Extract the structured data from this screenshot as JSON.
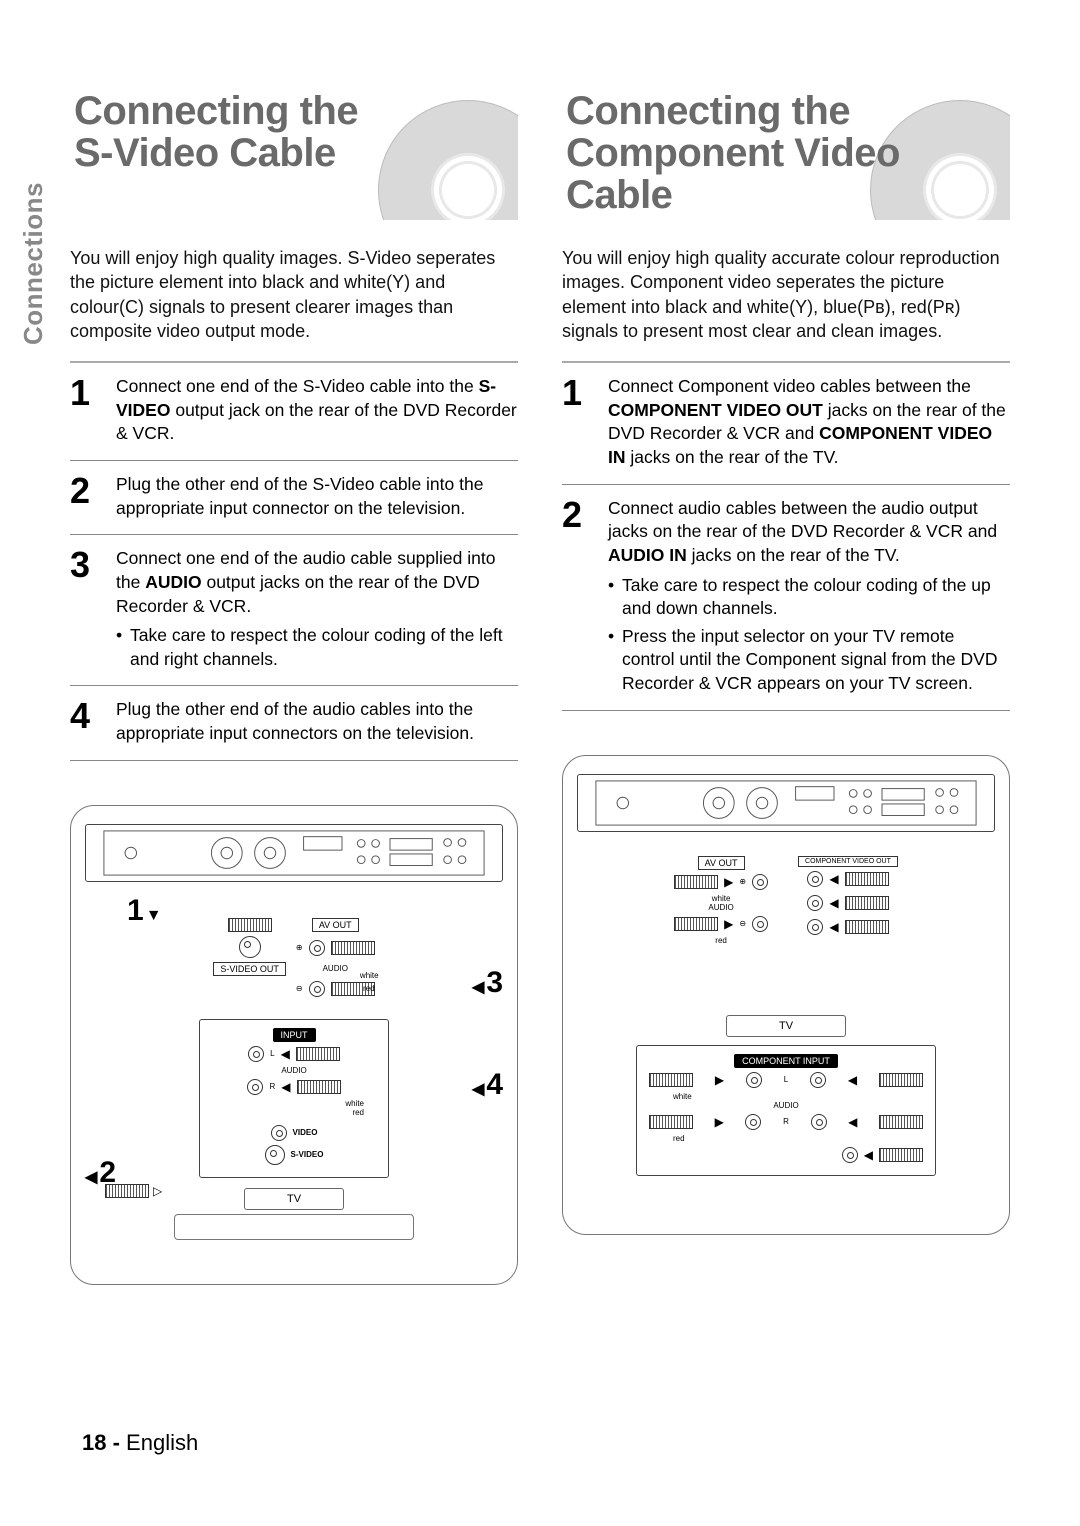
{
  "sideTab": "Connections",
  "footer": {
    "pageNumber": "18 -",
    "lang": "English"
  },
  "colors": {
    "titleText": "#6a6a6a",
    "sideTabText": "#888888",
    "ruleGray": "#888888",
    "bodyText": "#111111"
  },
  "typography": {
    "title_fontsize_pt": 30,
    "body_fontsize_pt": 13,
    "stepnum_fontsize_pt": 27
  },
  "left": {
    "title_line1": "Connecting the",
    "title_line2": "S-Video Cable",
    "intro": "You will enjoy high quality images. S-Video seperates the picture element into black and white(Y) and colour(C) signals to present clearer images than composite video output mode.",
    "steps": [
      {
        "num": "1",
        "segments": [
          {
            "text": "Connect one end of the S-Video cable into the ",
            "bold": false
          },
          {
            "text": "S-VIDEO",
            "bold": true
          },
          {
            "text": " output jack on the rear of the DVD Recorder & VCR.",
            "bold": false
          }
        ],
        "bullets": []
      },
      {
        "num": "2",
        "segments": [
          {
            "text": "Plug the other end of the S-Video cable into the appropriate input connector on the television.",
            "bold": false
          }
        ],
        "bullets": []
      },
      {
        "num": "3",
        "segments": [
          {
            "text": "Connect one end of the audio cable supplied into the ",
            "bold": false
          },
          {
            "text": "AUDIO",
            "bold": true
          },
          {
            "text": " output jacks on the rear of the DVD Recorder & VCR.",
            "bold": false
          }
        ],
        "bullets": [
          "Take care to respect the colour coding of the left and right channels."
        ]
      },
      {
        "num": "4",
        "segments": [
          {
            "text": "Plug the other end of the audio cables into the appropriate input connectors on the television.",
            "bold": false
          }
        ],
        "bullets": []
      }
    ],
    "diagram": {
      "numbers": [
        "1",
        "2",
        "3",
        "4"
      ],
      "labels": {
        "avout": "AV OUT",
        "svideoout": "S-VIDEO OUT",
        "audio": "AUDIO",
        "white": "white",
        "red": "red",
        "input": "INPUT",
        "L": "L",
        "R": "R",
        "video": "VIDEO",
        "svideo": "S-VIDEO",
        "tv": "TV"
      }
    }
  },
  "right": {
    "title_line1": "Connecting the",
    "title_line2": "Component Video Cable",
    "intro": "You will enjoy high quality accurate colour reproduction images. Component video seperates the picture element into black and white(Y), blue(Pʙ), red(Pʀ) signals to present most clear and clean images.",
    "steps": [
      {
        "num": "1",
        "segments": [
          {
            "text": "Connect Component video cables between the ",
            "bold": false
          },
          {
            "text": "COMPONENT VIDEO OUT",
            "bold": true
          },
          {
            "text": " jacks on the rear of the DVD Recorder & VCR and ",
            "bold": false
          },
          {
            "text": "COMPONENT VIDEO IN",
            "bold": true
          },
          {
            "text": " jacks on the rear of the TV.",
            "bold": false
          }
        ],
        "bullets": []
      },
      {
        "num": "2",
        "segments": [
          {
            "text": "Connect audio cables between the audio output jacks on the rear of the DVD Recorder & VCR and ",
            "bold": false
          },
          {
            "text": "AUDIO IN",
            "bold": true
          },
          {
            "text": " jacks on the rear of the TV.",
            "bold": false
          }
        ],
        "bullets": [
          "Take care to respect the colour coding of the up and down channels.",
          "Press the input selector on your TV remote control until the Component signal from the DVD Recorder & VCR appears on your TV screen."
        ]
      }
    ],
    "diagram": {
      "labels": {
        "avout": "AV OUT",
        "compout": "COMPONENT VIDEO OUT",
        "audio": "AUDIO",
        "white": "white",
        "red": "red",
        "compin": "COMPONENT INPUT",
        "L": "L",
        "R": "R",
        "tv": "TV"
      }
    }
  }
}
